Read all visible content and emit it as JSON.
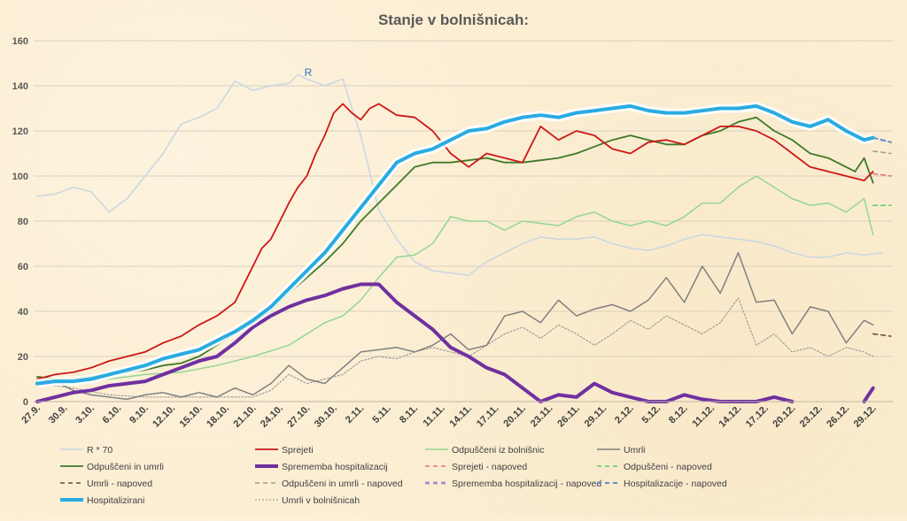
{
  "chart_data": {
    "type": "line",
    "title": "Stanje v bolnišnicah:",
    "ylim": [
      0,
      160
    ],
    "yticks": [
      0,
      20,
      40,
      60,
      80,
      100,
      120,
      140,
      160
    ],
    "x_tick_labels": [
      "27.9.",
      "30.9.",
      "3.10.",
      "6.10.",
      "9.10.",
      "12.10.",
      "15.10.",
      "18.10.",
      "21.10.",
      "24.10.",
      "27.10.",
      "30.10.",
      "2.11.",
      "5.11.",
      "8.11.",
      "11.11.",
      "14.11.",
      "17.11.",
      "20.11.",
      "23.11.",
      "26.11.",
      "29.11.",
      "2.12.",
      "5.12.",
      "8.12.",
      "11.12.",
      "14.12.",
      "17.12.",
      "20.12.",
      "23.12.",
      "26.12.",
      "29.12."
    ],
    "x_tick_step_days": 3,
    "x_range_days": [
      0,
      95
    ],
    "annotation": "R",
    "series": [
      {
        "key": "r70",
        "name": "R * 70",
        "color": "#c8d6e3",
        "width": 1.5,
        "dash": "",
        "x": [
          0,
          2,
          4,
          6,
          8,
          10,
          12,
          14,
          16,
          18,
          19,
          20,
          22,
          24,
          26,
          28,
          29,
          30,
          32,
          34,
          36,
          38,
          40,
          42,
          44,
          46,
          48,
          50,
          52,
          54,
          56,
          58,
          60,
          62,
          64,
          66,
          68,
          70,
          72,
          74,
          76,
          78,
          80,
          82,
          84,
          86,
          88,
          90,
          92,
          94
        ],
        "y": [
          91,
          92,
          95,
          93,
          84,
          90,
          100,
          110,
          123,
          126,
          128,
          130,
          142,
          138,
          140,
          141,
          145,
          143,
          140,
          143,
          118,
          85,
          72,
          62,
          58,
          57,
          56,
          62,
          66,
          70,
          73,
          72,
          72,
          73,
          70,
          68,
          67,
          69,
          72,
          74,
          73,
          72,
          71,
          69,
          66,
          64,
          64,
          66,
          65,
          66
        ]
      },
      {
        "key": "odp",
        "name": "Odpuščeni iz bolnišnic",
        "color": "#92d792",
        "width": 1.5,
        "dash": "",
        "x": [
          0,
          4,
          8,
          12,
          16,
          20,
          24,
          28,
          30,
          32,
          34,
          36,
          38,
          40,
          42,
          44,
          46,
          48,
          50,
          52,
          54,
          56,
          58,
          60,
          62,
          64,
          66,
          68,
          70,
          72,
          74,
          76,
          78,
          80,
          82,
          84,
          86,
          88,
          90,
          92,
          93
        ],
        "y": [
          9,
          9,
          10,
          12,
          13,
          16,
          20,
          25,
          30,
          35,
          38,
          45,
          55,
          64,
          65,
          70,
          82,
          80,
          80,
          76,
          80,
          79,
          78,
          82,
          84,
          80,
          78,
          80,
          78,
          82,
          88,
          88,
          95,
          100,
          95,
          90,
          87,
          88,
          84,
          90,
          74
        ]
      },
      {
        "key": "umrli",
        "name": "Umrli",
        "color": "#808080",
        "width": 1.5,
        "dash": "",
        "x": [
          0,
          2,
          4,
          6,
          8,
          10,
          12,
          14,
          16,
          18,
          20,
          22,
          24,
          26,
          28,
          30,
          32,
          34,
          36,
          38,
          40,
          42,
          44,
          46,
          48,
          50,
          52,
          54,
          56,
          58,
          60,
          62,
          64,
          66,
          68,
          70,
          72,
          74,
          76,
          78,
          80,
          82,
          84,
          86,
          88,
          90,
          92,
          93
        ],
        "y": [
          10,
          9,
          5,
          3,
          2,
          1,
          3,
          4,
          2,
          4,
          2,
          6,
          3,
          8,
          16,
          10,
          8,
          15,
          22,
          23,
          24,
          22,
          25,
          30,
          23,
          25,
          38,
          40,
          35,
          45,
          38,
          41,
          43,
          40,
          45,
          55,
          44,
          60,
          48,
          66,
          44,
          45,
          30,
          42,
          40,
          26,
          36,
          34
        ]
      },
      {
        "key": "uvb",
        "name": "Umrli v bolnišnicah",
        "color": "#909090",
        "width": 1,
        "dash": "2,2",
        "x": [
          0,
          4,
          8,
          12,
          16,
          20,
          24,
          26,
          28,
          30,
          32,
          34,
          36,
          38,
          40,
          42,
          44,
          46,
          48,
          50,
          52,
          54,
          56,
          58,
          60,
          62,
          64,
          66,
          68,
          70,
          72,
          74,
          76,
          78,
          80,
          82,
          84,
          86,
          88,
          90,
          92,
          93
        ],
        "y": [
          8,
          6,
          3,
          2,
          2,
          2,
          2,
          5,
          12,
          8,
          10,
          12,
          18,
          20,
          19,
          22,
          24,
          22,
          20,
          25,
          30,
          33,
          28,
          34,
          30,
          25,
          30,
          36,
          32,
          38,
          34,
          30,
          35,
          46,
          25,
          30,
          22,
          24,
          20,
          24,
          22,
          20
        ]
      },
      {
        "key": "spr",
        "name": "Sprejeti",
        "color": "#cc1818",
        "width": 1.8,
        "dash": "",
        "x": [
          0,
          2,
          4,
          6,
          8,
          10,
          12,
          14,
          16,
          18,
          20,
          22,
          24,
          25,
          26,
          27,
          28,
          29,
          30,
          31,
          32,
          33,
          34,
          35,
          36,
          37,
          38,
          40,
          42,
          44,
          46,
          48,
          50,
          52,
          54,
          56,
          58,
          60,
          62,
          64,
          66,
          68,
          70,
          72,
          74,
          76,
          78,
          80,
          82,
          84,
          86,
          88,
          90,
          92,
          93
        ],
        "y": [
          10,
          12,
          13,
          15,
          18,
          20,
          22,
          26,
          29,
          34,
          38,
          44,
          60,
          68,
          72,
          80,
          88,
          95,
          100,
          110,
          118,
          128,
          132,
          128,
          125,
          130,
          132,
          127,
          126,
          120,
          110,
          104,
          110,
          108,
          106,
          122,
          116,
          120,
          118,
          112,
          110,
          115,
          116,
          114,
          118,
          122,
          122,
          120,
          116,
          110,
          104,
          102,
          100,
          98,
          102
        ]
      },
      {
        "key": "oiu",
        "name": "Odpuščeni in umrli",
        "color": "#3e7a28",
        "width": 1.8,
        "dash": "",
        "x": [
          0,
          2,
          4,
          6,
          8,
          10,
          12,
          14,
          16,
          18,
          20,
          22,
          24,
          26,
          28,
          30,
          32,
          34,
          36,
          38,
          40,
          42,
          44,
          46,
          48,
          50,
          52,
          54,
          56,
          58,
          60,
          62,
          64,
          66,
          68,
          70,
          72,
          74,
          76,
          78,
          80,
          82,
          84,
          86,
          88,
          90,
          91,
          92,
          93
        ],
        "y": [
          11,
          10,
          10,
          11,
          12,
          13,
          14,
          16,
          17,
          20,
          25,
          30,
          35,
          40,
          48,
          55,
          62,
          70,
          80,
          88,
          96,
          104,
          106,
          106,
          107,
          108,
          106,
          106,
          107,
          108,
          110,
          113,
          116,
          118,
          116,
          114,
          114,
          118,
          120,
          124,
          126,
          120,
          116,
          110,
          108,
          104,
          102,
          108,
          97
        ]
      },
      {
        "key": "spm",
        "name": "Sprememba hospitalizacije",
        "color": "#7030a0",
        "width": 4,
        "dash": "",
        "x": [
          0,
          2,
          4,
          6,
          8,
          10,
          12,
          14,
          16,
          18,
          20,
          22,
          24,
          26,
          28,
          30,
          32,
          34,
          36,
          38,
          40,
          42,
          44,
          46,
          48,
          50,
          52,
          54,
          56,
          58,
          60,
          62,
          64,
          66,
          68,
          70,
          72,
          74,
          76,
          78,
          80,
          82,
          84
        ],
        "y": [
          0,
          2,
          4,
          5,
          7,
          8,
          9,
          12,
          15,
          18,
          20,
          26,
          33,
          38,
          42,
          45,
          47,
          50,
          52,
          52,
          44,
          38,
          32,
          24,
          20,
          15,
          12,
          6,
          0,
          3,
          2,
          8,
          4,
          2,
          0,
          0,
          3,
          1,
          0,
          0,
          0,
          2,
          0
        ]
      },
      {
        "key": "spm2",
        "name": "",
        "color": "#7030a0",
        "width": 4,
        "dash": "",
        "x": [
          92,
          93
        ],
        "y": [
          0,
          6
        ]
      },
      {
        "key": "hosp",
        "name": "Hospitalizirani",
        "color": "#29abe2",
        "width": 4,
        "dash": "",
        "glow": true,
        "x": [
          0,
          2,
          4,
          6,
          8,
          10,
          12,
          14,
          16,
          18,
          20,
          22,
          24,
          26,
          28,
          30,
          32,
          34,
          36,
          38,
          40,
          42,
          44,
          46,
          48,
          50,
          52,
          54,
          56,
          58,
          60,
          62,
          64,
          66,
          68,
          70,
          72,
          74,
          76,
          78,
          80,
          82,
          84,
          86,
          88,
          90,
          92,
          93
        ],
        "y": [
          8,
          9,
          9,
          10,
          12,
          14,
          16,
          19,
          21,
          23,
          27,
          31,
          36,
          42,
          50,
          58,
          66,
          76,
          86,
          96,
          106,
          110,
          112,
          116,
          120,
          121,
          124,
          126,
          127,
          126,
          128,
          129,
          130,
          131,
          129,
          128,
          128,
          129,
          130,
          130,
          131,
          128,
          124,
          122,
          125,
          120,
          116,
          117
        ]
      },
      {
        "key": "spr_nap",
        "name": "Sprejeti - napoved",
        "color": "#e07070",
        "width": 1.5,
        "dash": "5,4",
        "x": [
          93,
          95
        ],
        "y": [
          101,
          100
        ]
      },
      {
        "key": "odp_nap",
        "name": "Odpuščeni - napoved",
        "color": "#5ccf5c",
        "width": 1.5,
        "dash": "5,4",
        "x": [
          93,
          95
        ],
        "y": [
          87,
          87
        ]
      },
      {
        "key": "umr_nap",
        "name": "Umrli - napoved",
        "color": "#6b4a3a",
        "width": 1.5,
        "dash": "5,4",
        "x": [
          93,
          95
        ],
        "y": [
          30,
          29
        ]
      },
      {
        "key": "oiu_nap",
        "name": "Odpuščeni in umrli - napoved",
        "color": "#a0a080",
        "width": 1.5,
        "dash": "5,4",
        "x": [
          93,
          95
        ],
        "y": [
          111,
          110
        ]
      },
      {
        "key": "spm_nap",
        "name": "Sprememba hospitalizacij - napoved",
        "color": "#b08cd0",
        "width": 3,
        "dash": "5,4",
        "x": [],
        "y": []
      },
      {
        "key": "hosp_nap",
        "name": "Hospitalizacije - napoved",
        "color": "#5b8fd0",
        "width": 2,
        "dash": "5,4",
        "x": [
          93,
          95
        ],
        "y": [
          117,
          115
        ]
      }
    ],
    "legend": [
      {
        "series": "r70",
        "label": "R * 70"
      },
      {
        "series": "spr",
        "label": "Sprejeti"
      },
      {
        "series": "odp",
        "label": "Odpuščeni iz bolnišnic"
      },
      {
        "series": "umrli",
        "label": "Umrli"
      },
      {
        "series": "oiu",
        "label": "Odpuščeni in umrli"
      },
      {
        "series": "spm",
        "label": "Sprememba hospitalizacij"
      },
      {
        "series": "spr_nap",
        "label": "Sprejeti - napoved"
      },
      {
        "series": "odp_nap",
        "label": "Odpuščeni - napoved"
      },
      {
        "series": "umr_nap",
        "label": "Umrli - napoved"
      },
      {
        "series": "oiu_nap",
        "label": "Odpuščeni in umrli - napoved"
      },
      {
        "series": "spm_nap",
        "label": "Sprememba hospitalizacij - napoved"
      },
      {
        "series": "hosp_nap",
        "label": "Hospitalizacije - napoved"
      },
      {
        "series": "hosp",
        "label": "Hospitalizirani"
      },
      {
        "series": "uvb",
        "label": "Umrli v bolnišnicah"
      }
    ],
    "legend_position": "bottom",
    "grid": "horizontal"
  }
}
